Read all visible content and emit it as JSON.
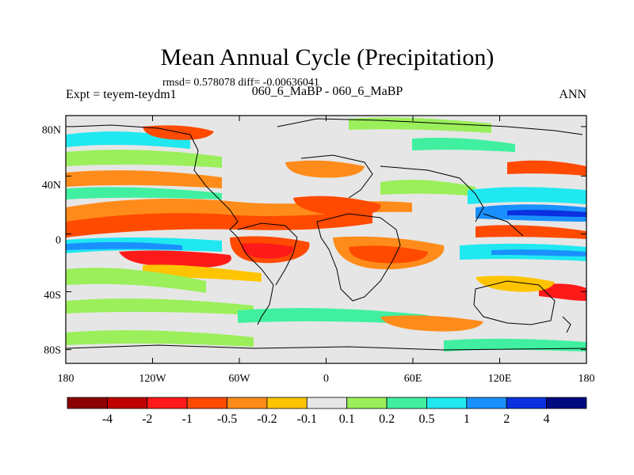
{
  "chart_data": {
    "type": "heatmap",
    "title": "Mean Annual Cycle (Precipitation)",
    "stats": "rmsd= 0.578078 diff= -0.00636041",
    "left_label": "Expt = teyem-teydm1",
    "center_label": "060_6_MaBP - 060_6_MaBP",
    "right_label": "ANN",
    "x_ticks": [
      "180",
      "120W",
      "60W",
      "0",
      "60E",
      "120E",
      "180"
    ],
    "y_ticks": [
      "80N",
      "40N",
      "0",
      "40S",
      "80S"
    ],
    "x_range": [
      -180,
      180
    ],
    "y_range": [
      -90,
      90
    ],
    "colorbar": {
      "colors": [
        "#8b0000",
        "#c00000",
        "#ff1a1a",
        "#ff4a00",
        "#ff8c1a",
        "#ffc400",
        "#e6e6e6",
        "#9aef5a",
        "#40f0a0",
        "#20e8f0",
        "#1a90ff",
        "#0a30e0",
        "#000a80"
      ],
      "labels": [
        "-4",
        "-2",
        "-1",
        "-0.5",
        "-0.2",
        "-0.1",
        "0.1",
        "0.2",
        "0.5",
        "1",
        "2",
        "4"
      ]
    }
  }
}
